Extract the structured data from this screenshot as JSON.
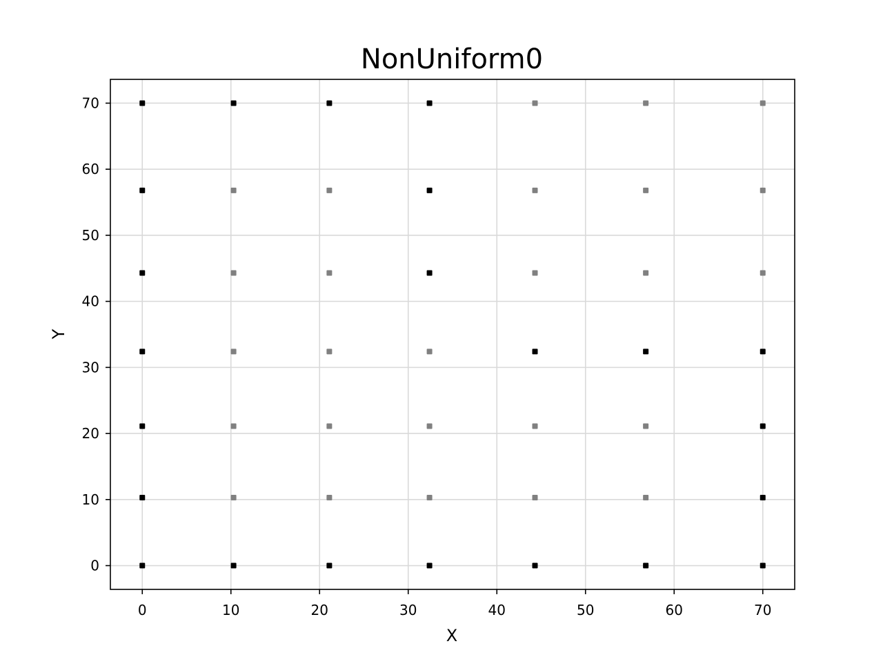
{
  "chart_data": {
    "type": "scatter",
    "title": "NonUniform0",
    "xlabel": "X",
    "ylabel": "Y",
    "xlim": [
      -3.6,
      73.6
    ],
    "ylim": [
      -3.6,
      73.6
    ],
    "xticks": [
      0,
      10,
      20,
      30,
      40,
      50,
      60,
      70
    ],
    "yticks": [
      0,
      10,
      20,
      30,
      40,
      50,
      60,
      70
    ],
    "grid": true,
    "legend": "none",
    "colors": {
      "highlight": "#000000",
      "normal": "#808080",
      "grid": "#d9d9d9"
    },
    "x_levels": [
      0,
      10.3,
      21.1,
      32.4,
      44.3,
      56.8,
      70
    ],
    "y_levels": [
      0,
      10.3,
      21.1,
      32.4,
      44.3,
      56.8,
      70
    ],
    "series": [
      {
        "color": "#000000",
        "points": [
          [
            0,
            70
          ],
          [
            10.3,
            70
          ],
          [
            21.1,
            70
          ],
          [
            32.4,
            70
          ],
          [
            0,
            56.8
          ],
          [
            32.4,
            56.8
          ],
          [
            0,
            44.3
          ],
          [
            32.4,
            44.3
          ],
          [
            0,
            32.4
          ],
          [
            44.3,
            32.4
          ],
          [
            56.8,
            32.4
          ],
          [
            70,
            32.4
          ],
          [
            0,
            21.1
          ],
          [
            70,
            21.1
          ],
          [
            0,
            10.3
          ],
          [
            70,
            10.3
          ],
          [
            0,
            0
          ],
          [
            10.3,
            0
          ],
          [
            21.1,
            0
          ],
          [
            32.4,
            0
          ],
          [
            44.3,
            0
          ],
          [
            56.8,
            0
          ],
          [
            70,
            0
          ]
        ]
      },
      {
        "color": "#808080",
        "points": [
          [
            44.3,
            70
          ],
          [
            56.8,
            70
          ],
          [
            70,
            70
          ],
          [
            10.3,
            56.8
          ],
          [
            21.1,
            56.8
          ],
          [
            44.3,
            56.8
          ],
          [
            56.8,
            56.8
          ],
          [
            70,
            56.8
          ],
          [
            10.3,
            44.3
          ],
          [
            21.1,
            44.3
          ],
          [
            44.3,
            44.3
          ],
          [
            56.8,
            44.3
          ],
          [
            70,
            44.3
          ],
          [
            10.3,
            32.4
          ],
          [
            21.1,
            32.4
          ],
          [
            32.4,
            32.4
          ],
          [
            10.3,
            21.1
          ],
          [
            21.1,
            21.1
          ],
          [
            32.4,
            21.1
          ],
          [
            44.3,
            21.1
          ],
          [
            56.8,
            21.1
          ],
          [
            10.3,
            10.3
          ],
          [
            21.1,
            10.3
          ],
          [
            32.4,
            10.3
          ],
          [
            44.3,
            10.3
          ],
          [
            56.8,
            10.3
          ]
        ]
      }
    ]
  }
}
